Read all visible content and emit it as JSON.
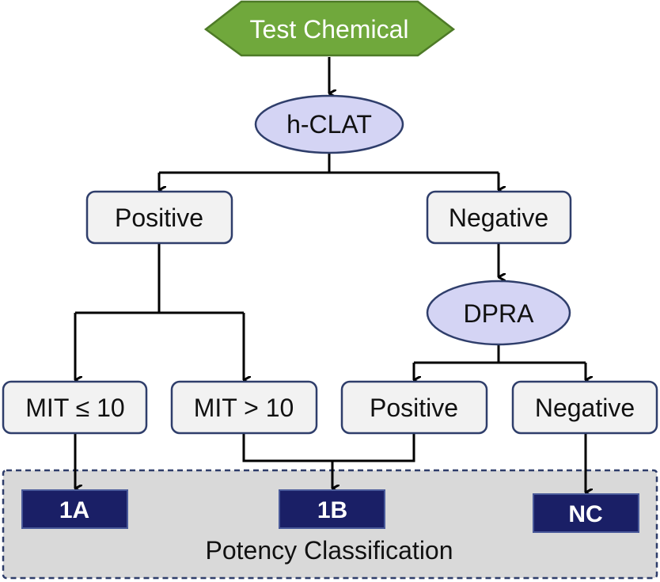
{
  "diagram": {
    "start": {
      "label": "Test Chemical",
      "color": "#70a83c",
      "border": "#4d7a27"
    },
    "assay1": {
      "label": "h-CLAT",
      "color": "#d4d4f4",
      "border": "#2f3e6b"
    },
    "assay1_positive": {
      "label": "Positive"
    },
    "assay1_negative": {
      "label": "Negative"
    },
    "assay2": {
      "label": "DPRA"
    },
    "mit_low": {
      "label": "MIT ≤ 10"
    },
    "mit_high": {
      "label": "MIT > 10"
    },
    "assay2_positive": {
      "label": "Positive"
    },
    "assay2_negative": {
      "label": "Negative"
    },
    "box_fill": "#f2f2f2",
    "box_border": "#2f3e6b",
    "classification": {
      "title": "Potency Classification",
      "panel_color": "#d9d9d9",
      "panel_border": "#2f3e6b",
      "class_color": "#1a1f66",
      "classes": [
        {
          "label": "1A"
        },
        {
          "label": "1B"
        },
        {
          "label": "NC"
        }
      ]
    }
  }
}
